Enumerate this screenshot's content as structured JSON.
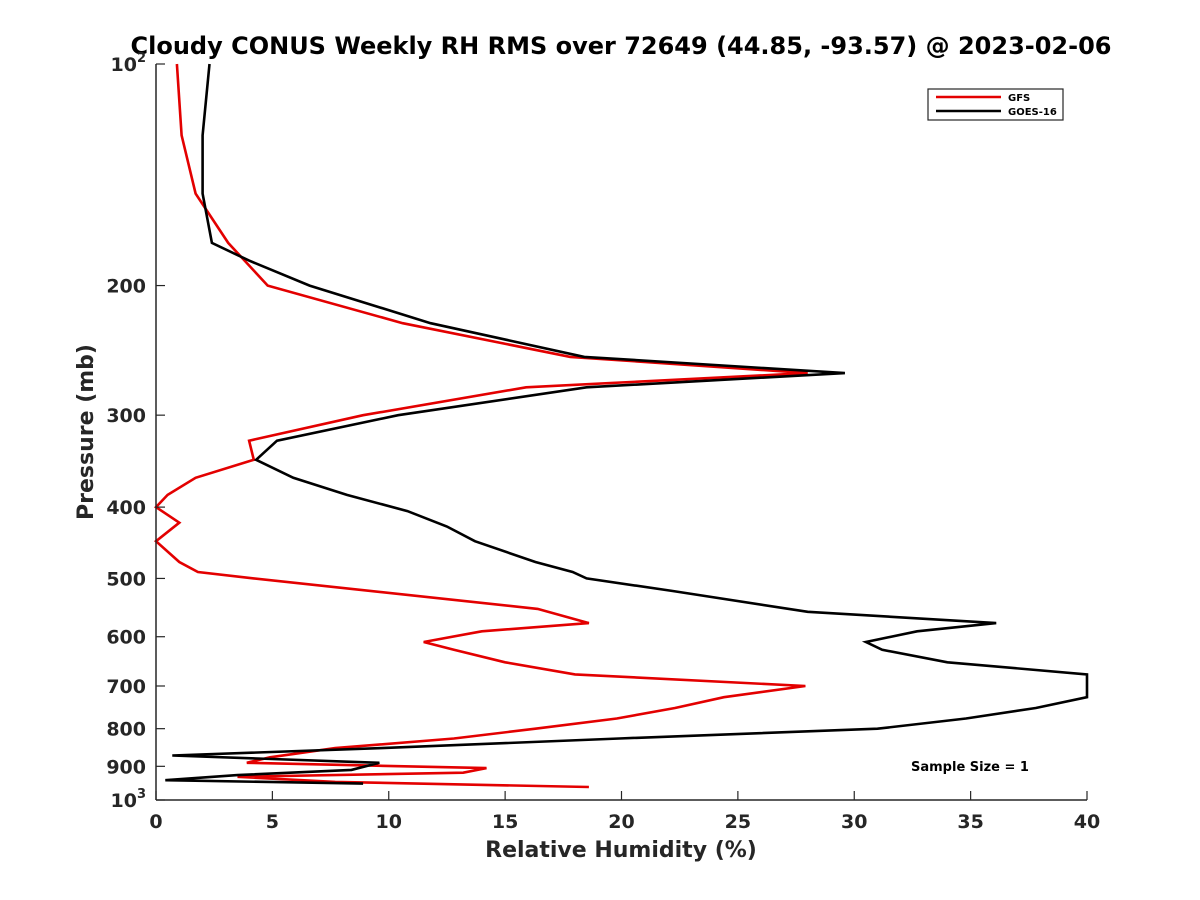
{
  "chart_data": {
    "type": "line",
    "title": "Cloudy CONUS Weekly RH RMS over 72649 (44.85, -93.57) @ 2023-02-06",
    "xlabel": "Relative Humidity (%)",
    "ylabel": "Pressure (mb)",
    "xlim": [
      0,
      40
    ],
    "ylim": [
      100,
      1000
    ],
    "yscale": "log",
    "y_reversed": true,
    "grid": false,
    "legend_position": "top-right",
    "xticks": [
      0,
      5,
      10,
      15,
      20,
      25,
      30,
      35,
      40
    ],
    "xtick_labels": [
      "0",
      "5",
      "10",
      "15",
      "20",
      "25",
      "30",
      "35",
      "40"
    ],
    "yticks": [
      {
        "value": 100,
        "base": "10",
        "exp": "2"
      },
      {
        "value": 200,
        "label": "200"
      },
      {
        "value": 300,
        "label": "300"
      },
      {
        "value": 400,
        "label": "400"
      },
      {
        "value": 500,
        "label": "500"
      },
      {
        "value": 600,
        "label": "600"
      },
      {
        "value": 700,
        "label": "700"
      },
      {
        "value": 800,
        "label": "800"
      },
      {
        "value": 900,
        "label": "900"
      },
      {
        "value": 1000,
        "base": "10",
        "exp": "3"
      }
    ],
    "annotation": "Sample Size = 1",
    "series": [
      {
        "name": "GFS",
        "color": "#e30000",
        "points": [
          [
            0.9,
            100
          ],
          [
            1.1,
            125
          ],
          [
            1.7,
            150
          ],
          [
            3.1,
            175
          ],
          [
            4.8,
            200
          ],
          [
            10.6,
            225
          ],
          [
            17.8,
            250
          ],
          [
            28.0,
            263
          ],
          [
            15.9,
            275
          ],
          [
            8.9,
            300
          ],
          [
            4.0,
            325
          ],
          [
            4.2,
            345
          ],
          [
            1.7,
            365
          ],
          [
            0.5,
            385
          ],
          [
            0.0,
            400
          ],
          [
            1.0,
            420
          ],
          [
            0.0,
            445
          ],
          [
            1.0,
            475
          ],
          [
            1.8,
            490
          ],
          [
            4.2,
            500
          ],
          [
            16.4,
            550
          ],
          [
            18.6,
            575
          ],
          [
            14.0,
            590
          ],
          [
            11.5,
            610
          ],
          [
            12.8,
            625
          ],
          [
            15.0,
            650
          ],
          [
            18.0,
            675
          ],
          [
            27.9,
            700
          ],
          [
            24.4,
            725
          ],
          [
            22.3,
            750
          ],
          [
            19.8,
            775
          ],
          [
            16.3,
            800
          ],
          [
            12.8,
            825
          ],
          [
            7.7,
            850
          ],
          [
            4.9,
            875
          ],
          [
            3.9,
            890
          ],
          [
            14.2,
            905
          ],
          [
            13.2,
            918
          ],
          [
            3.5,
            930
          ],
          [
            7.7,
            945
          ],
          [
            18.6,
            960
          ]
        ]
      },
      {
        "name": "GOES-16",
        "color": "#000000",
        "points": [
          [
            2.3,
            100
          ],
          [
            2.0,
            125
          ],
          [
            2.0,
            150
          ],
          [
            2.4,
            175
          ],
          [
            4.0,
            185
          ],
          [
            6.6,
            200
          ],
          [
            11.8,
            225
          ],
          [
            18.4,
            250
          ],
          [
            29.6,
            263
          ],
          [
            18.5,
            275
          ],
          [
            10.4,
            300
          ],
          [
            5.2,
            325
          ],
          [
            4.3,
            345
          ],
          [
            5.9,
            365
          ],
          [
            8.2,
            385
          ],
          [
            10.8,
            405
          ],
          [
            12.5,
            425
          ],
          [
            13.7,
            445
          ],
          [
            16.3,
            475
          ],
          [
            17.9,
            490
          ],
          [
            18.5,
            500
          ],
          [
            22.2,
            520
          ],
          [
            28.0,
            555
          ],
          [
            36.1,
            575
          ],
          [
            32.7,
            590
          ],
          [
            30.5,
            610
          ],
          [
            31.2,
            625
          ],
          [
            34.0,
            650
          ],
          [
            40.0,
            675
          ],
          [
            40.0,
            725
          ],
          [
            37.8,
            750
          ],
          [
            34.8,
            775
          ],
          [
            31.0,
            800
          ],
          [
            19.9,
            825
          ],
          [
            9.7,
            850
          ],
          [
            0.7,
            870
          ],
          [
            9.6,
            890
          ],
          [
            8.4,
            910
          ],
          [
            3.5,
            925
          ],
          [
            0.4,
            940
          ],
          [
            8.9,
            950
          ]
        ]
      }
    ]
  }
}
